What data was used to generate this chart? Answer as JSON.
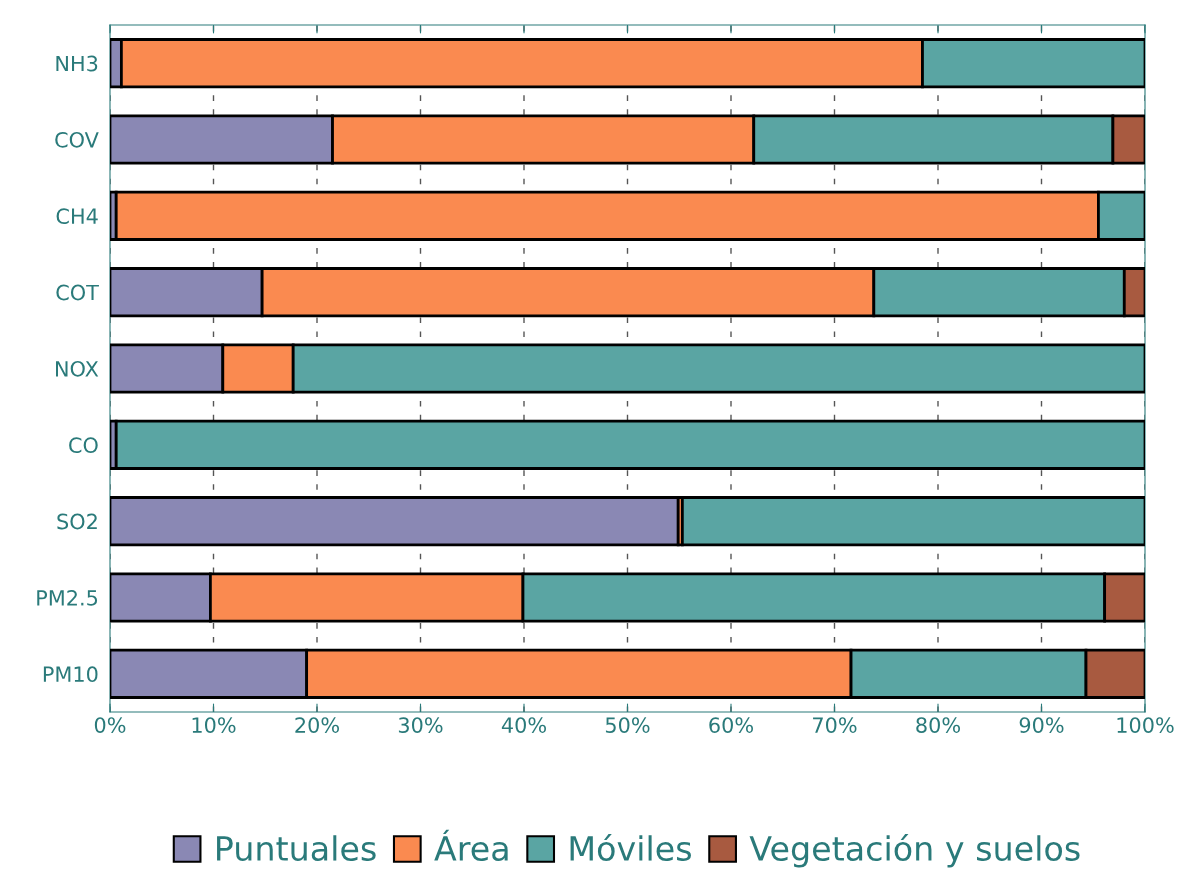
{
  "chart_data": {
    "type": "bar",
    "orientation": "horizontal",
    "stacked": true,
    "categories": [
      "NH3",
      "COV",
      "CH4",
      "COT",
      "NOX",
      "CO",
      "SO2",
      "PM2.5",
      "PM10"
    ],
    "series": [
      {
        "name": "Puntuales",
        "color": "#8a88b4",
        "values": [
          1.1,
          21.5,
          0.6,
          14.7,
          10.9,
          0.6,
          54.9,
          9.7,
          19.0
        ]
      },
      {
        "name": "Área",
        "color": "#fa8a50",
        "values": [
          77.4,
          40.7,
          94.9,
          59.1,
          6.8,
          null,
          0.4,
          30.2,
          52.6
        ]
      },
      {
        "name": "Móviles",
        "color": "#5aa5a3",
        "values": [
          21.5,
          34.7,
          4.5,
          24.2,
          82.3,
          99.4,
          44.7,
          56.2,
          22.7
        ]
      },
      {
        "name": "Vegetación y suelos",
        "color": "#a85a40",
        "values": [
          null,
          3.1,
          null,
          2.0,
          null,
          null,
          null,
          3.9,
          5.7
        ]
      }
    ],
    "xlim": [
      0,
      100
    ],
    "xticks": [
      {
        "value": 0,
        "label": "0%"
      },
      {
        "value": 10,
        "label": "10%"
      },
      {
        "value": 20,
        "label": "20%"
      },
      {
        "value": 30,
        "label": "30%"
      },
      {
        "value": 40,
        "label": "40%"
      },
      {
        "value": 50,
        "label": "50%"
      },
      {
        "value": 60,
        "label": "60%"
      },
      {
        "value": 70,
        "label": "70%"
      },
      {
        "value": 80,
        "label": "80%"
      },
      {
        "value": 90,
        "label": "90%"
      },
      {
        "value": 100,
        "label": "100%"
      }
    ],
    "grid": "x",
    "legend": "bottom"
  }
}
